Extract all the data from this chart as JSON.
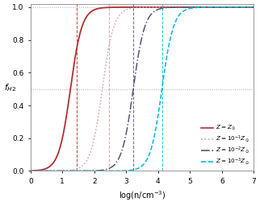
{
  "xlabel": "log(n/cm$^{-3}$)",
  "ylabel": "$f_{H2}$",
  "xlim": [
    0,
    7
  ],
  "ylim": [
    0.0,
    1.02
  ],
  "yticks": [
    0.0,
    0.2,
    0.4,
    0.6,
    0.8,
    1.0
  ],
  "xticks": [
    0,
    1,
    2,
    3,
    4,
    5,
    6,
    7
  ],
  "hlines": [
    0.5,
    1.0
  ],
  "series": [
    {
      "color": "#b03030",
      "linestyle": "solid",
      "linewidth": 1.3,
      "n0": 1.25,
      "k": 5.5,
      "vline": 1.45
    },
    {
      "color": "#d4a0a0",
      "linestyle": "dotted",
      "linewidth": 1.1,
      "n0": 2.25,
      "k": 5.5,
      "vline": 2.45
    },
    {
      "color": "#555577",
      "linestyle": "dashdot",
      "linewidth": 1.1,
      "n0": 3.22,
      "k": 5.5,
      "vline": 3.22
    },
    {
      "color": "#00bcd4",
      "linestyle": "dashed",
      "linewidth": 1.1,
      "n0": 4.12,
      "k": 5.5,
      "vline": 4.12
    }
  ],
  "legend_labels": [
    "$Z = Z_\\odot$",
    "$Z = 10^{-1} Z_\\odot$",
    "$Z = 10^{-2} Z_\\odot$",
    "$Z = 10^{-3} Z_\\odot$"
  ],
  "background_color": "#ffffff",
  "grid_color": "#aaaaaa"
}
